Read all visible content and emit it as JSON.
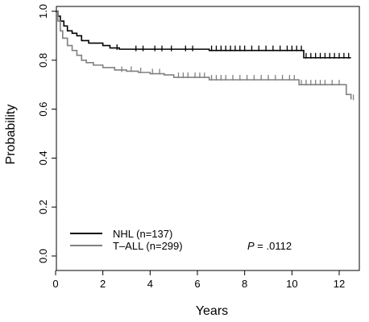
{
  "chart_data": {
    "type": "line",
    "subtype": "kaplan-meier",
    "title": "",
    "xlabel": "Years",
    "ylabel": "Probability",
    "xlim": [
      0,
      12.8
    ],
    "ylim": [
      0,
      1.02
    ],
    "x_ticks": [
      0,
      2,
      4,
      6,
      8,
      10,
      12
    ],
    "y_ticks": [
      0.0,
      0.2,
      0.4,
      0.6,
      0.8,
      1.0
    ],
    "y_tick_labels": [
      "0.0",
      "0.2",
      "0.4",
      "0.6",
      "0.8",
      "1.0"
    ],
    "grid": false,
    "legend_position": "bottom-left",
    "series": [
      {
        "name": "NHL (n=137)",
        "color": "#000000",
        "x": [
          0,
          0.1,
          0.2,
          0.35,
          0.5,
          0.7,
          0.9,
          1.1,
          1.4,
          1.7,
          2.0,
          2.3,
          2.7,
          6.5,
          10.5,
          12.5
        ],
        "y": [
          1.0,
          0.98,
          0.96,
          0.94,
          0.92,
          0.91,
          0.9,
          0.88,
          0.87,
          0.87,
          0.86,
          0.85,
          0.845,
          0.84,
          0.81,
          0.81
        ],
        "censor_x": [
          2.6,
          3.4,
          3.7,
          4.2,
          4.5,
          4.9,
          5.5,
          5.8,
          6.6,
          6.8,
          7.0,
          7.2,
          7.4,
          7.6,
          7.8,
          8.0,
          8.3,
          8.6,
          8.9,
          9.2,
          9.5,
          9.8,
          10.0,
          10.2,
          10.4,
          10.6,
          10.8,
          11.0,
          11.2,
          11.4,
          11.6,
          11.8,
          12.0,
          12.2,
          12.4
        ],
        "censor_y": [
          0.845,
          0.84,
          0.84,
          0.84,
          0.84,
          0.84,
          0.84,
          0.84,
          0.84,
          0.84,
          0.84,
          0.84,
          0.84,
          0.84,
          0.84,
          0.84,
          0.84,
          0.84,
          0.84,
          0.84,
          0.84,
          0.84,
          0.84,
          0.84,
          0.84,
          0.81,
          0.81,
          0.81,
          0.81,
          0.81,
          0.81,
          0.81,
          0.81,
          0.81,
          0.81
        ]
      },
      {
        "name": "T–ALL (n=299)",
        "color": "#808080",
        "x": [
          0,
          0.1,
          0.2,
          0.3,
          0.5,
          0.7,
          0.9,
          1.1,
          1.3,
          1.6,
          2.0,
          2.5,
          3.0,
          3.5,
          4.0,
          4.6,
          5.0,
          6.5,
          10.3,
          12.3,
          12.5
        ],
        "y": [
          1.0,
          0.96,
          0.92,
          0.89,
          0.86,
          0.84,
          0.82,
          0.8,
          0.79,
          0.78,
          0.77,
          0.76,
          0.755,
          0.75,
          0.745,
          0.74,
          0.73,
          0.72,
          0.7,
          0.66,
          0.64
        ],
        "censor_x": [
          2.8,
          3.2,
          3.6,
          4.1,
          4.4,
          5.2,
          5.4,
          5.6,
          5.9,
          6.1,
          6.3,
          6.6,
          6.8,
          7.0,
          7.2,
          7.5,
          7.8,
          8.1,
          8.4,
          8.7,
          9.0,
          9.3,
          9.6,
          9.9,
          10.1,
          10.4,
          10.6,
          10.8,
          11.0,
          11.2,
          11.4,
          11.7,
          12.0,
          12.6
        ],
        "censor_y": [
          0.755,
          0.755,
          0.75,
          0.745,
          0.745,
          0.73,
          0.73,
          0.73,
          0.73,
          0.73,
          0.73,
          0.72,
          0.72,
          0.72,
          0.72,
          0.72,
          0.72,
          0.72,
          0.72,
          0.72,
          0.72,
          0.72,
          0.72,
          0.72,
          0.72,
          0.7,
          0.7,
          0.7,
          0.7,
          0.7,
          0.7,
          0.7,
          0.7,
          0.64
        ]
      }
    ],
    "annotation": {
      "p_label": "P",
      "p_value": " = .0112"
    }
  }
}
